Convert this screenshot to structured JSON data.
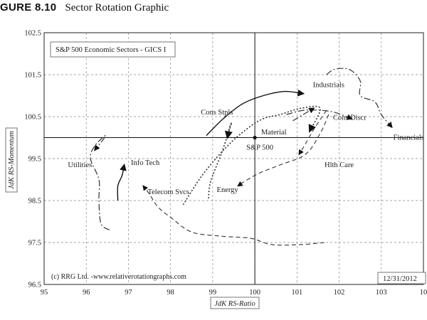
{
  "figure": {
    "number": "GURE 8.10",
    "caption": "Sector Rotation Graphic"
  },
  "chart_data": {
    "type": "scatter",
    "title": "S&P 500 Economic Sectors - GICS I",
    "xlabel": "JdK RS-Ratio",
    "ylabel": "JdK RS-Momentum",
    "xlim": [
      95,
      104
    ],
    "ylim": [
      96.5,
      102.5
    ],
    "xticks": [
      "95",
      "96",
      "97",
      "98",
      "99",
      "100",
      "101",
      "102",
      "103",
      "10"
    ],
    "yticks": [
      "96.5",
      "97.5",
      "98.5",
      "99.5",
      "100.5",
      "101.5",
      "102.5"
    ],
    "grid": true,
    "center": {
      "x": 100,
      "y": 100,
      "label": "S&P 500"
    },
    "credit": "(c) RRG Ltd. -www.relativerotationgraphs.com",
    "date": "12/31/2012",
    "series": [
      {
        "name": "Industrials",
        "style": "solid",
        "label_at": [
          101.75,
          101.2
        ],
        "points": [
          [
            98.85,
            100.05
          ],
          [
            99.25,
            100.45
          ],
          [
            99.7,
            100.8
          ],
          [
            100.2,
            101.0
          ],
          [
            100.7,
            101.1
          ],
          [
            101.15,
            101.05
          ]
        ]
      },
      {
        "name": "Financials",
        "style": "dashdot",
        "label_at": [
          103.65,
          99.95
        ],
        "points": [
          [
            101.7,
            101.5
          ],
          [
            101.9,
            101.63
          ],
          [
            102.25,
            101.62
          ],
          [
            102.5,
            101.35
          ],
          [
            102.5,
            101.0
          ],
          [
            102.85,
            100.85
          ],
          [
            103.0,
            100.55
          ],
          [
            103.25,
            100.25
          ]
        ]
      },
      {
        "name": "Cons Discr",
        "style": "dashdot",
        "label_at": [
          102.25,
          100.42
        ],
        "points": [
          [
            100.75,
            100.55
          ],
          [
            101.15,
            100.65
          ],
          [
            101.55,
            100.65
          ],
          [
            101.9,
            100.6
          ],
          [
            102.3,
            100.45
          ]
        ]
      },
      {
        "name": "Cons Stpls",
        "style": "dotted",
        "label_at": [
          99.1,
          100.55
        ],
        "points": [
          [
            98.9,
            98.55
          ],
          [
            98.95,
            98.95
          ],
          [
            99.2,
            99.6
          ],
          [
            99.35,
            100.05
          ],
          [
            99.45,
            100.35
          ],
          [
            99.4,
            100.25
          ],
          [
            99.35,
            100.0
          ]
        ]
      },
      {
        "name": "Material",
        "style": "dotted",
        "label_at": [
          100.45,
          100.08
        ],
        "points": [
          [
            98.3,
            98.4
          ],
          [
            98.75,
            99.1
          ],
          [
            99.3,
            99.75
          ],
          [
            99.8,
            100.2
          ],
          [
            100.2,
            100.45
          ],
          [
            100.6,
            100.55
          ],
          [
            101.1,
            100.7
          ],
          [
            101.55,
            100.7
          ],
          [
            101.3,
            100.15
          ]
        ]
      },
      {
        "name": "Hlth Care",
        "style": "dashed",
        "label_at": [
          102.0,
          99.3
        ],
        "points": [
          [
            101.7,
            100.65
          ],
          [
            101.4,
            100.2
          ],
          [
            101.2,
            99.85
          ],
          [
            101.05,
            99.6
          ]
        ]
      },
      {
        "name": "Energy",
        "style": "dashed",
        "label_at": [
          99.35,
          98.7
        ],
        "points": [
          [
            101.75,
            100.55
          ],
          [
            101.55,
            100.1
          ],
          [
            101.2,
            99.6
          ],
          [
            100.6,
            99.35
          ],
          [
            100.1,
            99.15
          ],
          [
            99.75,
            98.95
          ],
          [
            99.6,
            98.85
          ]
        ]
      },
      {
        "name": "Utilities",
        "style": "dashdot",
        "label_at": [
          95.85,
          99.3
        ],
        "points": [
          [
            96.55,
            97.8
          ],
          [
            96.35,
            97.95
          ],
          [
            96.3,
            98.5
          ],
          [
            96.3,
            99.0
          ],
          [
            96.1,
            99.5
          ],
          [
            96.2,
            99.8
          ],
          [
            96.45,
            100.05
          ],
          [
            96.4,
            99.95
          ],
          [
            96.2,
            99.7
          ]
        ]
      },
      {
        "name": "Info Tech",
        "style": "solid",
        "label_at": [
          97.4,
          99.35
        ],
        "points": [
          [
            96.75,
            98.5
          ],
          [
            96.75,
            98.85
          ],
          [
            96.85,
            99.1
          ],
          [
            96.9,
            99.35
          ]
        ]
      },
      {
        "name": "Telecom Svcs",
        "style": "dashed",
        "label_at": [
          97.95,
          98.65
        ],
        "points": [
          [
            101.65,
            97.5
          ],
          [
            101.1,
            97.45
          ],
          [
            100.4,
            97.45
          ],
          [
            99.9,
            97.6
          ],
          [
            99.2,
            97.65
          ],
          [
            98.5,
            97.75
          ],
          [
            98.0,
            98.1
          ],
          [
            97.7,
            98.35
          ],
          [
            97.5,
            98.65
          ],
          [
            97.35,
            98.85
          ]
        ]
      },
      {
        "name": "",
        "style": "dashdot",
        "label_at": null,
        "points": [
          [
            100.9,
            100.4
          ],
          [
            101.4,
            100.7
          ]
        ]
      }
    ]
  }
}
